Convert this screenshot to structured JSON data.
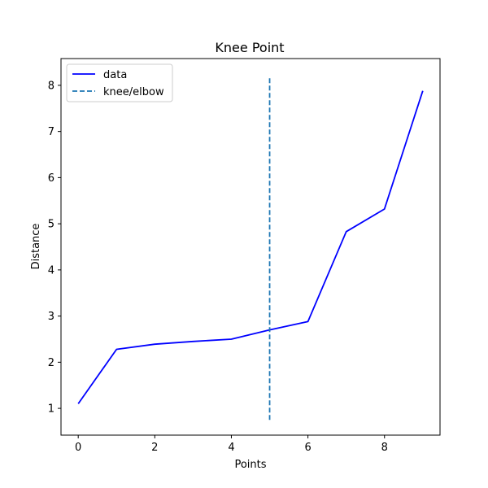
{
  "chart_data": {
    "type": "line",
    "title": "Knee Point",
    "xlabel": "Points",
    "ylabel": "Distance",
    "xlim": [
      -0.45,
      9.45
    ],
    "ylim": [
      0.42,
      8.58
    ],
    "xticks": [
      0,
      2,
      4,
      6,
      8
    ],
    "yticks": [
      1,
      2,
      3,
      4,
      5,
      6,
      7,
      8
    ],
    "grid": false,
    "legend_position": "top-left",
    "series": [
      {
        "name": "data",
        "style": "solid",
        "color": "#0000ff",
        "x": [
          0,
          1,
          2,
          3,
          4,
          5,
          6,
          7,
          8,
          9
        ],
        "y": [
          1.1,
          2.28,
          2.39,
          2.45,
          2.5,
          2.7,
          2.88,
          4.83,
          5.32,
          7.88
        ]
      }
    ],
    "vlines": [
      {
        "name": "knee/elbow",
        "style": "dashed",
        "color": "#1f77b4",
        "x": 5,
        "ymin": 0.75,
        "ymax": 8.17
      }
    ],
    "legend": [
      {
        "label": "data",
        "style": "solid",
        "color": "#0000ff"
      },
      {
        "label": "knee/elbow",
        "style": "dashed",
        "color": "#1f77b4"
      }
    ]
  }
}
